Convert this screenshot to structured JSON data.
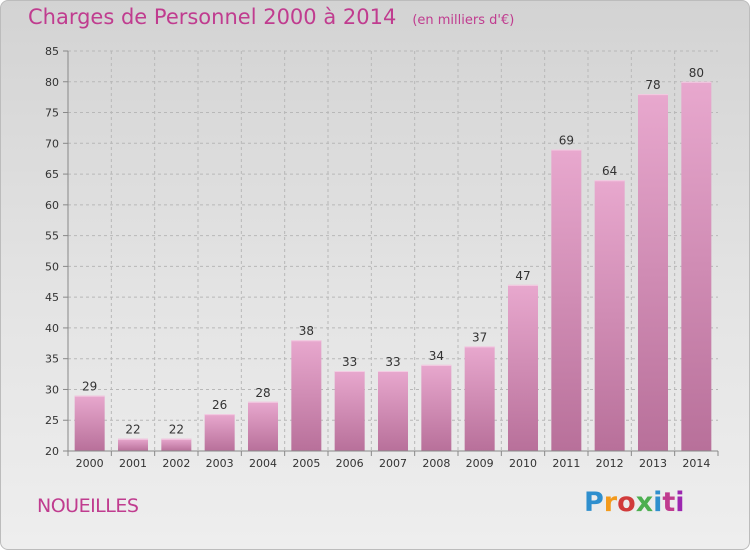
{
  "title": "Charges de Personnel 2000 à 2014",
  "subtitle": "(en milliers d'€)",
  "commune": "NOUEILLES",
  "logo": {
    "text": "Proxiti",
    "letter_colors": [
      "#2f8fce",
      "#f39a1c",
      "#d13b3b",
      "#4caf50",
      "#2f8fce",
      "#c03c8f",
      "#9c27b0"
    ]
  },
  "colors": {
    "title": "#c03c8f",
    "bar_light": "#e8a8ce",
    "bar_dark": "#b8709a",
    "axis": "#888888",
    "grid": "#b8b8b8",
    "label": "#333333"
  },
  "chart_data": {
    "type": "bar",
    "categories": [
      "2000",
      "2001",
      "2002",
      "2003",
      "2004",
      "2005",
      "2006",
      "2007",
      "2008",
      "2009",
      "2010",
      "2011",
      "2012",
      "2013",
      "2014"
    ],
    "values": [
      29,
      22,
      22,
      26,
      28,
      38,
      33,
      33,
      34,
      37,
      47,
      69,
      64,
      78,
      80
    ],
    "data_labels": [
      "29",
      "22",
      "22",
      "26",
      "28",
      "38",
      "33",
      "33",
      "34",
      "37",
      "47",
      "69",
      "64",
      "78",
      "80"
    ],
    "ylim": [
      20,
      85
    ],
    "yticks": [
      20,
      25,
      30,
      35,
      40,
      45,
      50,
      55,
      60,
      65,
      70,
      75,
      80,
      85
    ],
    "title": "Charges de Personnel 2000 à 2014",
    "xlabel": "",
    "ylabel": "",
    "grid": true
  }
}
